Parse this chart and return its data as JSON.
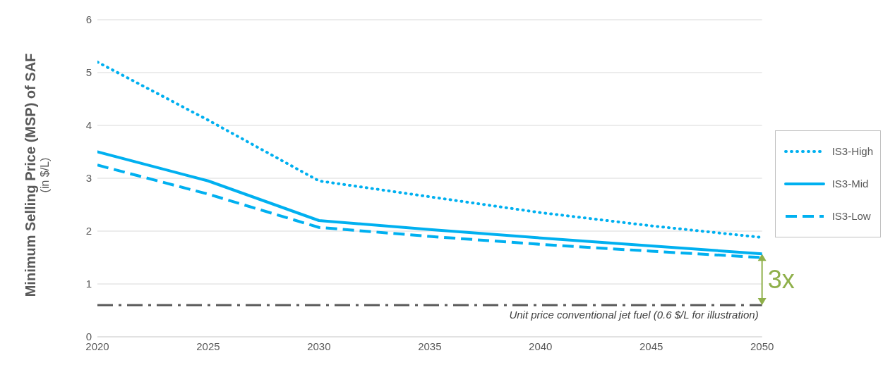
{
  "chart_data": {
    "type": "line",
    "x": [
      2020,
      2025,
      2030,
      2035,
      2040,
      2045,
      2050
    ],
    "series": [
      {
        "name": "IS3-High",
        "color": "#00b0f0",
        "line_style": "dotted",
        "values": [
          5.2,
          4.1,
          2.95,
          2.65,
          2.35,
          2.1,
          1.88
        ]
      },
      {
        "name": "IS3-Mid",
        "color": "#00b0f0",
        "line_style": "solid",
        "values": [
          3.5,
          2.95,
          2.2,
          2.03,
          1.87,
          1.72,
          1.57
        ]
      },
      {
        "name": "IS3-Low",
        "color": "#00b0f0",
        "line_style": "dashed",
        "values": [
          3.25,
          2.7,
          2.07,
          1.9,
          1.75,
          1.62,
          1.5
        ]
      }
    ],
    "ylabel": "Minimum Selling Price (MSP) of SAF\n(in $/L)",
    "xlim": [
      2020,
      2050
    ],
    "xticks": [
      2020,
      2025,
      2030,
      2035,
      2040,
      2045,
      2050
    ],
    "ylim": [
      0,
      6
    ],
    "yticks": [
      0,
      1,
      2,
      3,
      4,
      5,
      6
    ],
    "grid": "y",
    "legend": "right",
    "marker": "none",
    "ref_lines": [
      {
        "axis": "y",
        "value": 0.6,
        "label": "Unit price conventional jet fuel (0.6 $/L for illustration)",
        "color": "#595959",
        "line_style": "dashdot"
      }
    ],
    "annotations": [
      "3x"
    ]
  }
}
